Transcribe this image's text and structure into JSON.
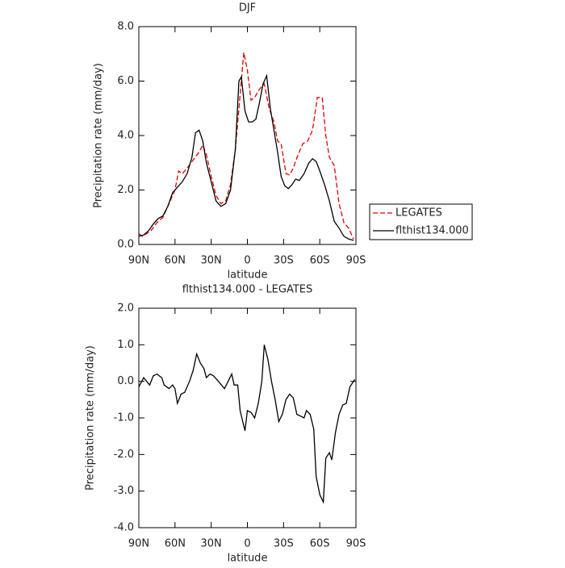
{
  "chart_data": [
    {
      "type": "line",
      "title": "DJF",
      "x_label": "latitude",
      "y_label": "Precipitation rate (mm/day)",
      "xlim": [
        90,
        -90
      ],
      "ylim": [
        0,
        8
      ],
      "xticks": [
        {
          "value": 90,
          "label": "90N"
        },
        {
          "value": 60,
          "label": "60N"
        },
        {
          "value": 30,
          "label": "30N"
        },
        0,
        {
          "value": -30,
          "label": "30S"
        },
        {
          "value": -60,
          "label": "60S"
        },
        {
          "value": -90,
          "label": "90S"
        }
      ],
      "yticks": [
        {
          "value": 0,
          "label": "0.0"
        },
        {
          "value": 2,
          "label": "2.0"
        },
        {
          "value": 4,
          "label": "4.0"
        },
        {
          "value": 6,
          "label": "6.0"
        },
        {
          "value": 8,
          "label": "8.0"
        }
      ],
      "legend": "right",
      "series": [
        {
          "name": "LEGATES",
          "color": "#e00000",
          "dashed": true,
          "x": [
            90,
            87,
            80,
            75,
            70,
            65,
            60,
            57,
            54,
            50,
            45,
            40,
            37,
            34,
            30,
            26,
            22,
            18,
            14,
            10,
            6,
            3,
            0,
            -3,
            -6,
            -10,
            -14,
            -18,
            -22,
            -25,
            -28,
            -32,
            -35,
            -38,
            -42,
            -46,
            -50,
            -54,
            -58,
            -62,
            -65,
            -68,
            -72,
            -76,
            -80,
            -84,
            -88
          ],
          "values": [
            0.4,
            0.3,
            0.5,
            0.8,
            1.0,
            1.5,
            2.0,
            2.7,
            2.6,
            2.8,
            3.1,
            3.4,
            3.65,
            3.3,
            2.5,
            1.8,
            1.5,
            1.6,
            2.2,
            3.5,
            5.5,
            7.05,
            6.4,
            5.3,
            5.4,
            5.7,
            5.9,
            5.0,
            4.5,
            3.8,
            3.7,
            2.6,
            2.55,
            2.8,
            3.3,
            3.7,
            3.8,
            4.2,
            5.4,
            5.4,
            4.0,
            3.2,
            2.9,
            1.5,
            0.8,
            0.6,
            0.2
          ]
        },
        {
          "name": "flthist134.000",
          "color": "#000000",
          "dashed": false,
          "x": [
            90,
            86,
            82,
            78,
            74,
            70,
            66,
            62,
            58,
            54,
            50,
            46,
            43,
            40,
            37,
            34,
            30,
            26,
            22,
            18,
            14,
            10,
            7,
            5,
            2,
            -1,
            -4,
            -7,
            -10,
            -13,
            -16,
            -19,
            -22,
            -25,
            -28,
            -31,
            -34,
            -37,
            -40,
            -43,
            -47,
            -51,
            -54,
            -57,
            -60,
            -64,
            -68,
            -72,
            -76,
            -80,
            -84,
            -88
          ],
          "values": [
            0.3,
            0.35,
            0.5,
            0.75,
            0.95,
            1.05,
            1.4,
            1.9,
            2.1,
            2.3,
            2.6,
            3.2,
            4.1,
            4.2,
            3.8,
            3.0,
            2.3,
            1.6,
            1.4,
            1.5,
            2.0,
            3.5,
            6.0,
            6.15,
            4.9,
            4.5,
            4.5,
            4.6,
            5.2,
            5.9,
            6.2,
            5.0,
            4.2,
            3.4,
            2.5,
            2.15,
            2.05,
            2.2,
            2.4,
            2.35,
            2.6,
            3.0,
            3.15,
            3.05,
            2.7,
            2.2,
            1.6,
            0.85,
            0.6,
            0.3,
            0.2,
            0.15
          ]
        }
      ]
    },
    {
      "type": "line",
      "title": "flthist134.000 - LEGATES",
      "x_label": "latitude",
      "y_label": "Precipitation rate (mm/day)",
      "xlim": [
        90,
        -90
      ],
      "ylim": [
        -4,
        2
      ],
      "xticks": [
        {
          "value": 90,
          "label": "90N"
        },
        {
          "value": 60,
          "label": "60N"
        },
        {
          "value": 30,
          "label": "30N"
        },
        0,
        {
          "value": -30,
          "label": "30S"
        },
        {
          "value": -60,
          "label": "60S"
        },
        {
          "value": -90,
          "label": "90S"
        }
      ],
      "yticks": [
        {
          "value": -4,
          "label": "-4.0"
        },
        {
          "value": -3,
          "label": "-3.0"
        },
        {
          "value": -2,
          "label": "-2.0"
        },
        {
          "value": -1,
          "label": "-1.0"
        },
        {
          "value": 0,
          "label": "0.0"
        },
        {
          "value": 1,
          "label": "1.0"
        },
        {
          "value": 2,
          "label": "2.0"
        }
      ],
      "series": [
        {
          "color": "#000000",
          "dashed": false,
          "x": [
            90,
            86,
            81,
            78,
            75,
            71,
            69,
            65,
            62,
            60,
            58,
            55,
            52,
            48,
            45,
            42,
            39,
            36,
            34,
            31,
            28,
            24,
            19,
            16,
            13,
            11,
            8,
            6,
            2,
            0,
            -3,
            -6,
            -9,
            -12,
            -14,
            -17,
            -20,
            -23,
            -26,
            -29,
            -32,
            -35,
            -38,
            -41,
            -44,
            -47,
            -49,
            -52,
            -55,
            -57,
            -60,
            -63,
            -65,
            -68,
            -70,
            -73,
            -76,
            -79,
            -82,
            -85,
            -89
          ],
          "values": [
            -0.15,
            0.1,
            -0.1,
            0.15,
            0.2,
            0.1,
            -0.1,
            -0.2,
            -0.1,
            -0.2,
            -0.6,
            -0.35,
            -0.3,
            0.0,
            0.3,
            0.75,
            0.5,
            0.35,
            0.1,
            0.2,
            0.15,
            0.0,
            -0.2,
            0.0,
            0.2,
            -0.1,
            -0.1,
            -0.8,
            -1.35,
            -0.8,
            -0.85,
            -1.0,
            -0.6,
            0.0,
            1.0,
            0.6,
            0.0,
            -0.5,
            -1.1,
            -0.9,
            -0.5,
            -0.35,
            -0.45,
            -0.9,
            -0.95,
            -1.0,
            -0.8,
            -0.9,
            -1.3,
            -2.6,
            -3.1,
            -3.3,
            -2.1,
            -1.95,
            -2.15,
            -1.4,
            -0.9,
            -0.65,
            -0.6,
            -0.15,
            0.05
          ]
        }
      ]
    }
  ]
}
